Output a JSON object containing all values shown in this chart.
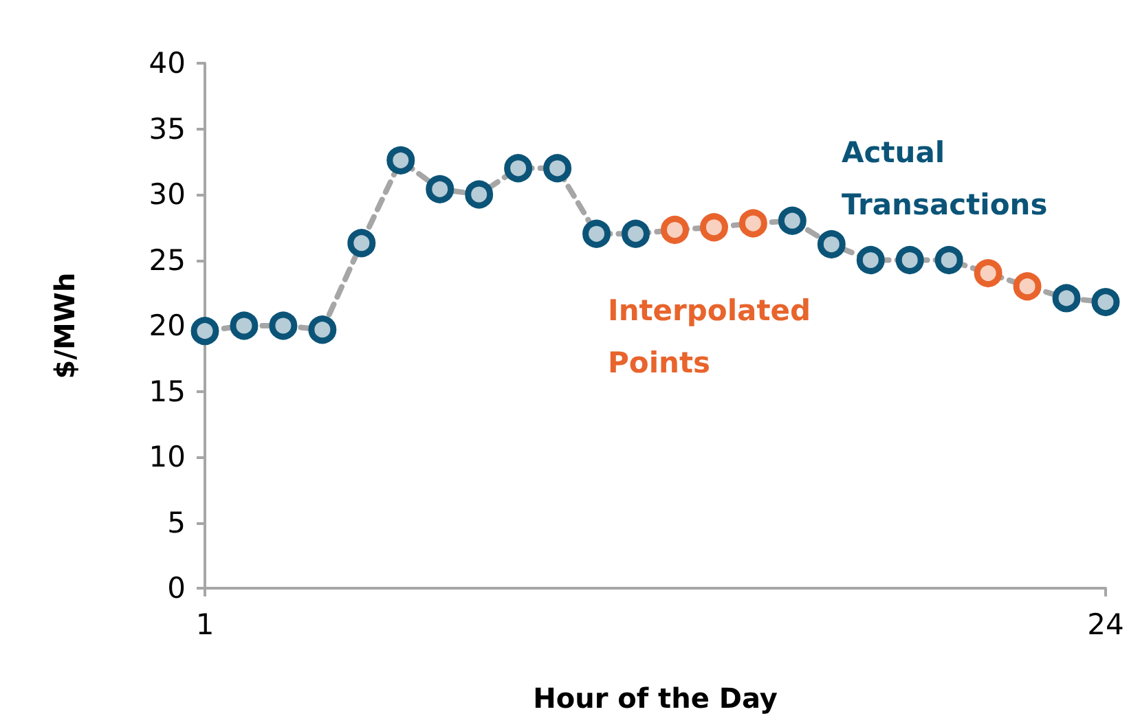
{
  "chart_data": {
    "type": "line",
    "xlabel": "Hour of the Day",
    "ylabel": "$/MWh",
    "x": [
      1,
      2,
      3,
      4,
      5,
      6,
      7,
      8,
      9,
      10,
      11,
      12,
      13,
      14,
      15,
      16,
      17,
      18,
      19,
      20,
      21,
      22,
      23,
      24
    ],
    "series": [
      {
        "color": "#a6a6a6",
        "line_style": "dashed",
        "marker": "none",
        "values": [
          19.6,
          20.0,
          20.0,
          19.7,
          26.3,
          32.6,
          30.4,
          30.0,
          32.0,
          32.0,
          27.0,
          27.0,
          27.3,
          27.5,
          27.8,
          28.0,
          26.2,
          25.0,
          25.0,
          25.0,
          24.0,
          23.0,
          22.1,
          21.8
        ]
      },
      {
        "type": "scatter",
        "name": "Actual Transactions",
        "color": "#0b5478",
        "marker": "circle",
        "values": [
          19.6,
          20.0,
          20.0,
          19.7,
          26.3,
          32.6,
          30.4,
          30.0,
          32.0,
          32.0,
          27.0,
          27.0,
          null,
          null,
          null,
          28.0,
          26.2,
          25.0,
          25.0,
          25.0,
          null,
          null,
          22.1,
          21.8
        ]
      },
      {
        "type": "scatter",
        "name": "Interpolated Points",
        "color": "#e8642c",
        "marker": "circle",
        "values": [
          null,
          null,
          null,
          null,
          null,
          null,
          null,
          null,
          null,
          null,
          null,
          null,
          27.3,
          27.5,
          27.8,
          null,
          null,
          null,
          null,
          null,
          24.0,
          23.0,
          null,
          null
        ]
      }
    ],
    "xlim": [
      1,
      24
    ],
    "xticks": [
      1,
      24
    ],
    "ylim": [
      0,
      40
    ],
    "yticks": [
      0,
      5,
      10,
      15,
      20,
      25,
      30,
      35,
      40
    ],
    "grid": false,
    "legend": false
  }
}
